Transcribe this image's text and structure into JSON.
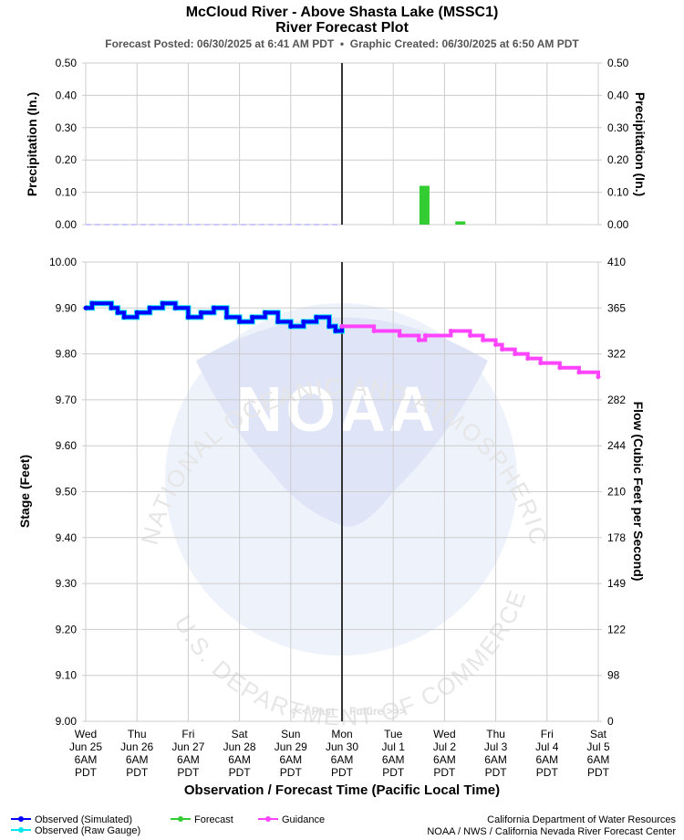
{
  "title": "McCloud River - Above Shasta Lake (MSSC1)",
  "subtitle": "River Forecast Plot",
  "posted_line": "Forecast Posted: 06/30/2025 at 6:41 AM PDT  •  Graphic Created: 06/30/2025 at 6:50 AM PDT",
  "chart_data": [
    {
      "type": "bar",
      "name": "precipitation",
      "ylabel_left": "Precipitation (In.)",
      "ylabel_right": "Precipitation (In.)",
      "ylim": [
        0,
        0.5
      ],
      "yticks": [
        "0.00",
        "0.10",
        "0.20",
        "0.30",
        "0.40",
        "0.50"
      ],
      "x_unit": "days since Wed Jun 25 6AM PDT",
      "observed_line_value": 0.0,
      "observed_range": [
        0,
        5
      ],
      "bars": [
        {
          "x": 6.6,
          "value": 0.12,
          "series": "Forecast"
        },
        {
          "x": 7.3,
          "value": 0.01,
          "series": "Forecast"
        }
      ]
    },
    {
      "type": "line",
      "name": "stage",
      "ylabel_left": "Stage (Feet)",
      "ylabel_right": "Flow (Cubic Feet per Second)",
      "ylim": [
        9.0,
        10.0
      ],
      "yticks": [
        "9.00",
        "9.10",
        "9.20",
        "9.30",
        "9.40",
        "9.50",
        "9.60",
        "9.70",
        "9.80",
        "9.90",
        "10.00"
      ],
      "flow_ticks": [
        "0",
        "98",
        "122",
        "149",
        "178",
        "210",
        "244",
        "282",
        "322",
        "365",
        "410"
      ],
      "x_unit": "days since Wed Jun 25 6AM PDT",
      "xlim": [
        0,
        10
      ],
      "now_x": 5.0,
      "past_label": "<<< Past",
      "future_label": "Future >>>",
      "series": [
        {
          "name": "Observed (Simulated)",
          "x": [
            0,
            0.125,
            0.5,
            0.625,
            0.75,
            1.0,
            1.25,
            1.5,
            1.75,
            2.0,
            2.25,
            2.5,
            2.75,
            3.0,
            3.25,
            3.5,
            3.75,
            4.0,
            4.25,
            4.5,
            4.75,
            4.875,
            5.0
          ],
          "values": [
            9.9,
            9.91,
            9.9,
            9.89,
            9.88,
            9.89,
            9.9,
            9.91,
            9.9,
            9.88,
            9.89,
            9.9,
            9.88,
            9.87,
            9.88,
            9.89,
            9.87,
            9.86,
            9.87,
            9.88,
            9.86,
            9.85,
            9.86
          ]
        },
        {
          "name": "Guidance",
          "x": [
            5.0,
            5.625,
            6.125,
            6.5,
            6.625,
            7.125,
            7.5,
            7.75,
            8.0,
            8.125,
            8.375,
            8.625,
            8.875,
            9.25,
            9.625,
            10.0
          ],
          "values": [
            9.86,
            9.85,
            9.84,
            9.83,
            9.84,
            9.85,
            9.84,
            9.83,
            9.82,
            9.81,
            9.8,
            9.79,
            9.78,
            9.77,
            9.76,
            9.75
          ]
        }
      ]
    }
  ],
  "x_ticks": [
    {
      "day": "Wed",
      "date": "Jun 25",
      "time": "6AM",
      "tz": "PDT"
    },
    {
      "day": "Thu",
      "date": "Jun 26",
      "time": "6AM",
      "tz": "PDT"
    },
    {
      "day": "Fri",
      "date": "Jun 27",
      "time": "6AM",
      "tz": "PDT"
    },
    {
      "day": "Sat",
      "date": "Jun 28",
      "time": "6AM",
      "tz": "PDT"
    },
    {
      "day": "Sun",
      "date": "Jun 29",
      "time": "6AM",
      "tz": "PDT"
    },
    {
      "day": "Mon",
      "date": "Jun 30",
      "time": "6AM",
      "tz": "PDT"
    },
    {
      "day": "Tue",
      "date": "Jul 1",
      "time": "6AM",
      "tz": "PDT"
    },
    {
      "day": "Wed",
      "date": "Jul 2",
      "time": "6AM",
      "tz": "PDT"
    },
    {
      "day": "Thu",
      "date": "Jul 3",
      "time": "6AM",
      "tz": "PDT"
    },
    {
      "day": "Fri",
      "date": "Jul 4",
      "time": "6AM",
      "tz": "PDT"
    },
    {
      "day": "Sat",
      "date": "Jul 5",
      "time": "6AM",
      "tz": "PDT"
    }
  ],
  "x_axis_label": "Observation / Forecast Time (Pacific Local Time)",
  "legend": [
    {
      "label": "Observed (Simulated)",
      "color": "#0000ff"
    },
    {
      "label": "Observed (Raw Gauge)",
      "color": "#00e5ee"
    },
    {
      "label": "Forecast",
      "color": "#33cc33"
    },
    {
      "label": "Guidance",
      "color": "#ff44ff"
    }
  ],
  "credits": [
    "California Department of Water Resources",
    "NOAA / NWS / California Nevada River Forecast Center"
  ],
  "watermark": {
    "logo_text": "NOAA",
    "ring_text": "NATIONAL OCEANIC AND ATMOSPHERIC ADMINISTRATION",
    "bottom_text": "U.S. DEPARTMENT OF COMMERCE"
  },
  "colors": {
    "grid": "#cccccc",
    "observed": "#0000ff",
    "observed_edge": "#00e5ee",
    "forecast": "#33cc33",
    "guidance": "#ff44ff",
    "now_line": "#333333",
    "precip_obs": "#b8b8ff"
  }
}
